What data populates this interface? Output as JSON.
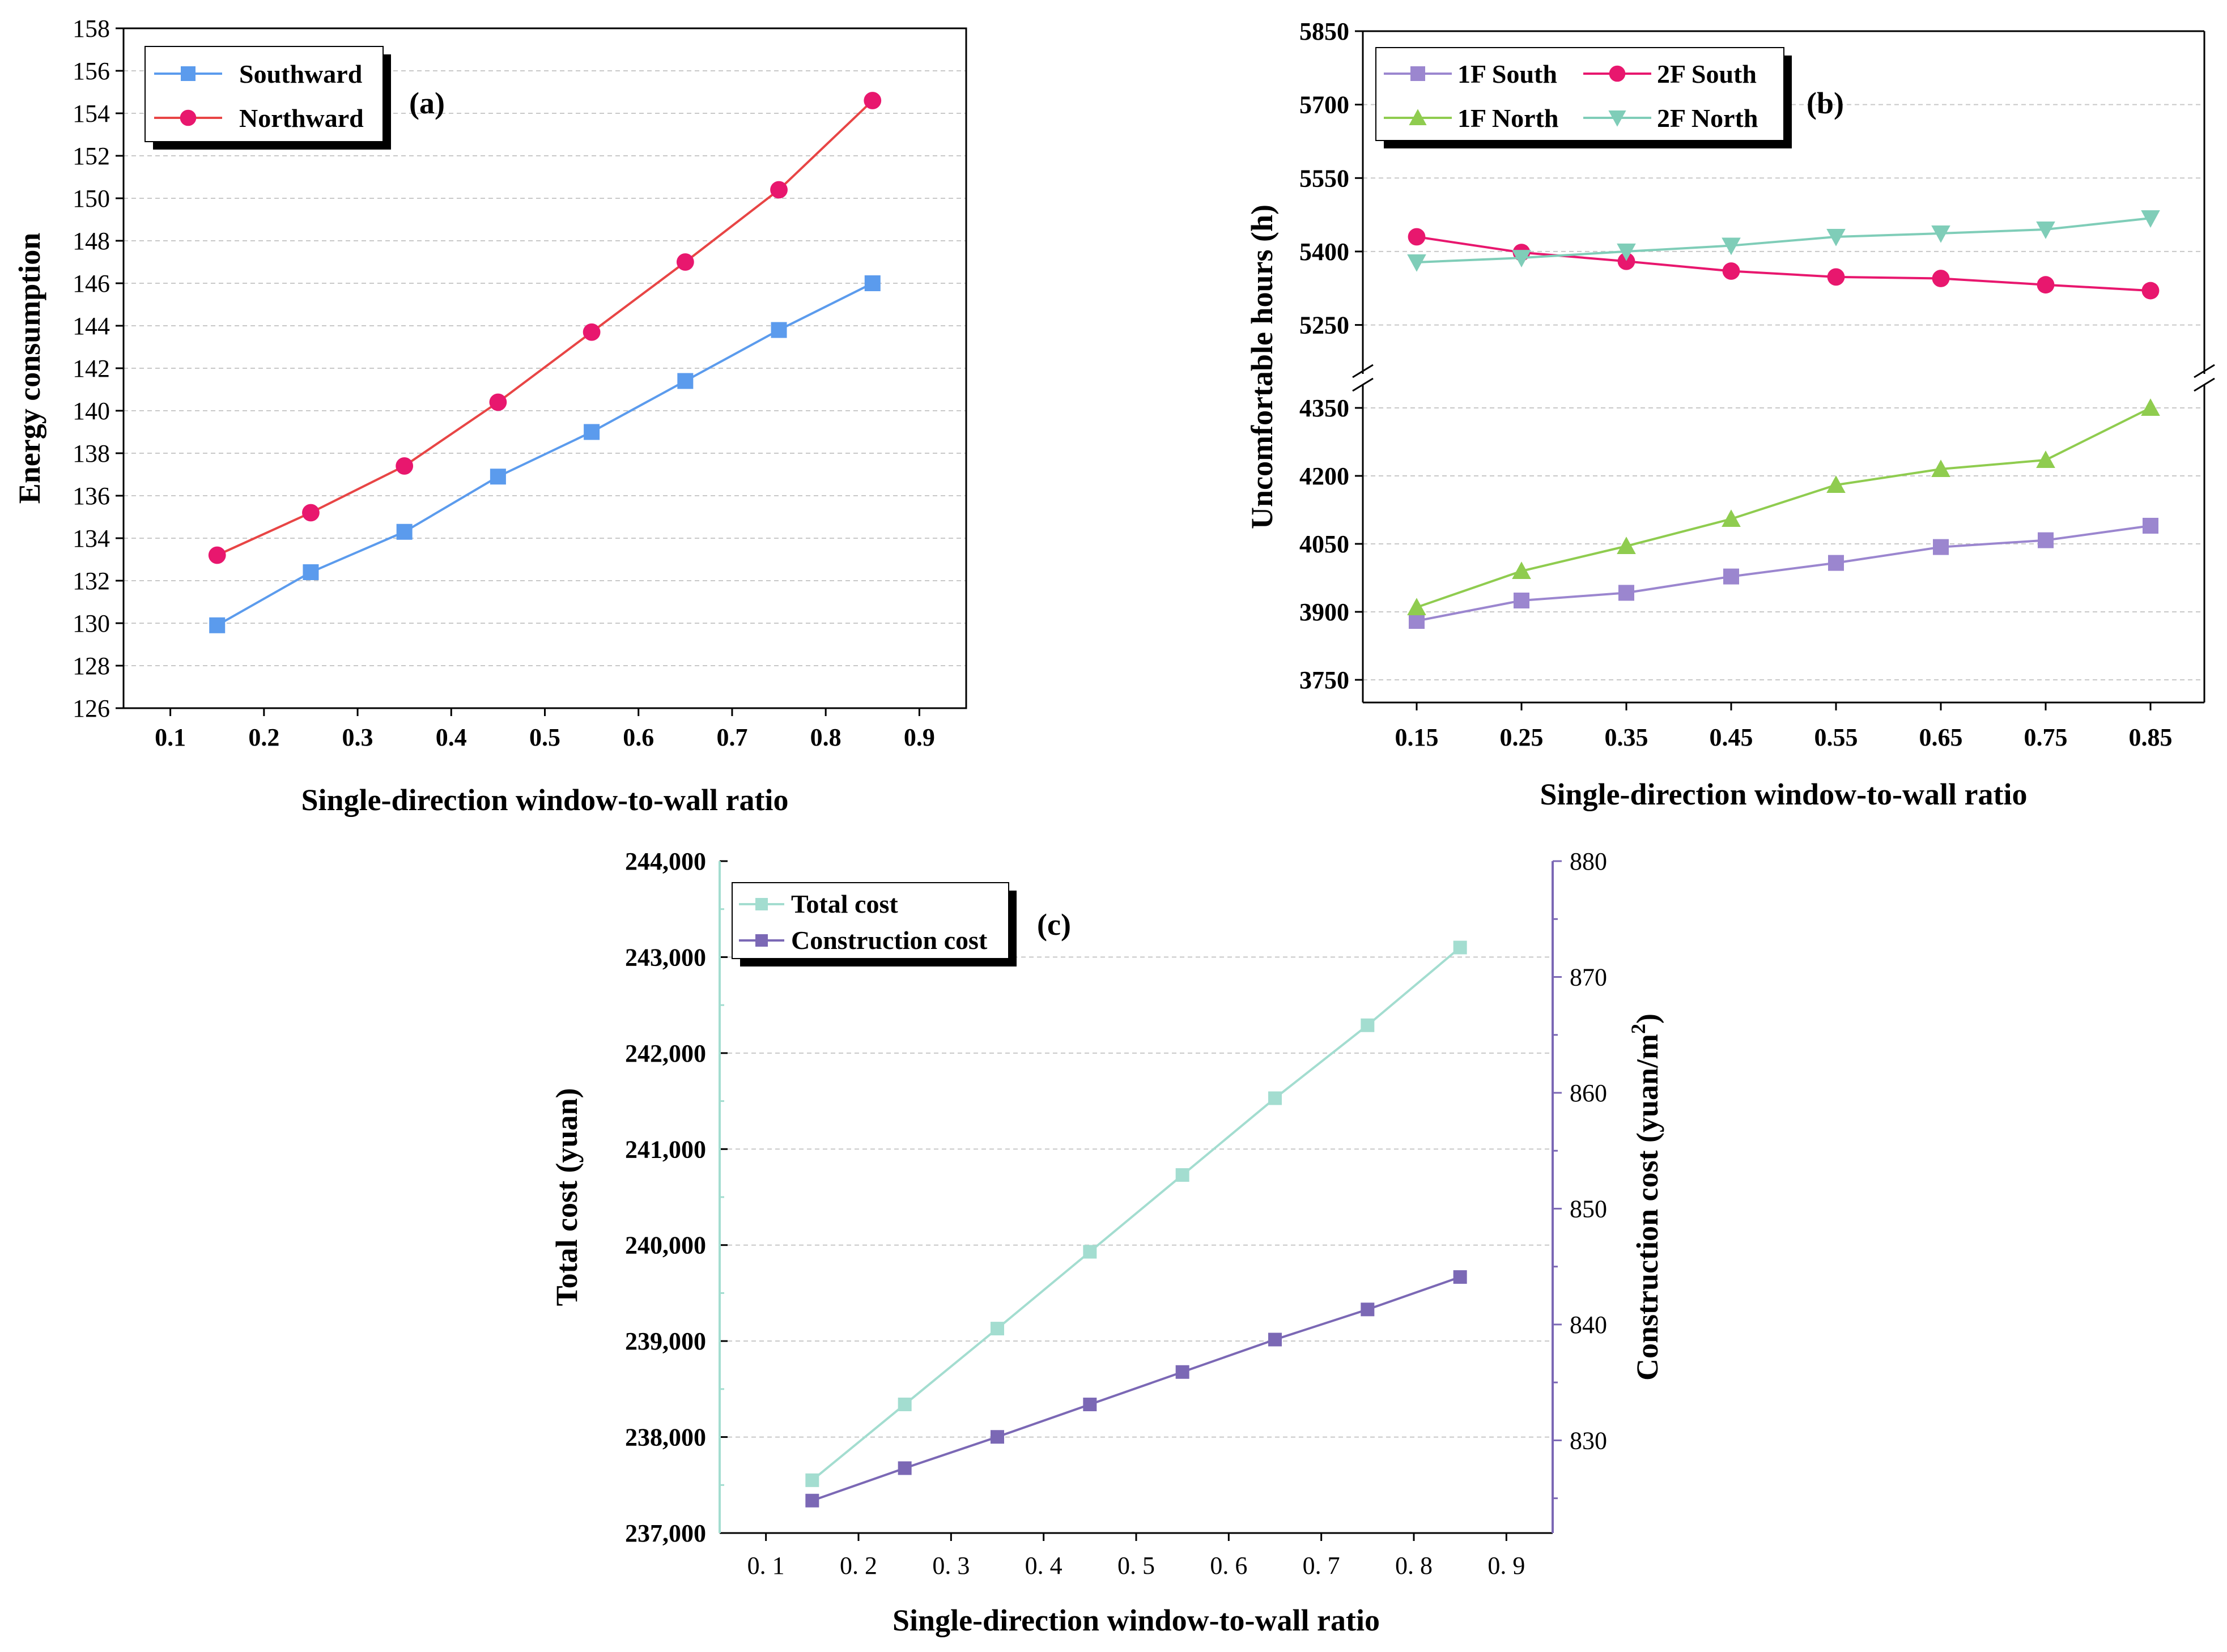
{
  "chart_data": [
    {
      "type": "line",
      "panel_label": "(a)",
      "xlabel": "Single-direction window-to-wall ratio",
      "ylabel": "Energy consumption",
      "xlim": [
        0.05,
        0.95
      ],
      "ylim": [
        126,
        158
      ],
      "x_ticks": [
        "0.1",
        "0.2",
        "0.3",
        "0.4",
        "0.5",
        "0.6",
        "0.7",
        "0.8",
        "0.9"
      ],
      "y_ticks": [
        "126",
        "128",
        "130",
        "132",
        "134",
        "136",
        "138",
        "140",
        "142",
        "144",
        "146",
        "148",
        "150",
        "152",
        "154",
        "156",
        "158"
      ],
      "grid": true,
      "legend_position": "top-left",
      "x": [
        0.15,
        0.25,
        0.35,
        0.45,
        0.55,
        0.65,
        0.75,
        0.85
      ],
      "series": [
        {
          "name": "Southward",
          "color": "#5b9bed",
          "marker": "square",
          "values": [
            129.9,
            132.4,
            134.3,
            136.9,
            139.0,
            141.4,
            143.8,
            146.0
          ]
        },
        {
          "name": "Northward",
          "color": "#e8176e",
          "line_color": "#e84545",
          "marker": "circle",
          "values": [
            133.2,
            135.2,
            137.4,
            140.4,
            143.7,
            147.0,
            150.4,
            154.6
          ]
        }
      ]
    },
    {
      "type": "line",
      "panel_label": "(b)",
      "xlabel": "Single-direction window-to-wall ratio",
      "ylabel": "Uncomfortable hours (h)",
      "x": [
        "0.15",
        "0.25",
        "0.35",
        "0.45",
        "0.55",
        "0.65",
        "0.75",
        "0.85"
      ],
      "y_ticks_upper": [
        "5250",
        "5400",
        "5550",
        "5700",
        "5850"
      ],
      "y_ticks_lower": [
        "3750",
        "3900",
        "4050",
        "4200",
        "4350"
      ],
      "ylim_upper": [
        5150,
        5850
      ],
      "ylim_lower": [
        3700,
        4400
      ],
      "axis_break": true,
      "grid": true,
      "legend_position": "top-left",
      "series": [
        {
          "name": "1F South",
          "color": "#9b86cf",
          "marker": "square",
          "values": [
            3880,
            3925,
            3942,
            3978,
            4008,
            4043,
            4058,
            4090
          ]
        },
        {
          "name": "2F South",
          "color": "#e8176e",
          "marker": "circle",
          "values": [
            5430,
            5398,
            5380,
            5360,
            5348,
            5345,
            5332,
            5320
          ]
        },
        {
          "name": "1F North",
          "color": "#8fcc4f",
          "marker": "triangle-up",
          "values": [
            3910,
            3990,
            4045,
            4105,
            4180,
            4215,
            4235,
            4350
          ]
        },
        {
          "name": "2F North",
          "color": "#7fcdb8",
          "marker": "triangle-down",
          "values": [
            5378,
            5387,
            5400,
            5412,
            5430,
            5437,
            5445,
            5468
          ]
        }
      ]
    },
    {
      "type": "line",
      "panel_label": "(c)",
      "xlabel": "Single-direction window-to-wall ratio",
      "ylabel": "Total cost (yuan)",
      "ylabel_right": "Construction cost (yuan/m²)",
      "ylabel_right_base": "Construction cost (yuan/m",
      "ylabel_right_sup": "2",
      "ylabel_right_close": ")",
      "xlim": [
        0.05,
        0.95
      ],
      "ylim": [
        237000,
        244000
      ],
      "ylim_right": [
        822,
        880
      ],
      "x_ticks": [
        "0. 1",
        "0. 2",
        "0. 3",
        "0. 4",
        "0. 5",
        "0. 6",
        "0. 7",
        "0. 8",
        "0. 9"
      ],
      "y_ticks": [
        "237,000",
        "238,000",
        "239,000",
        "240,000",
        "241,000",
        "242,000",
        "243,000",
        "244,000"
      ],
      "y_ticks_right": [
        "830",
        "840",
        "850",
        "860",
        "870",
        "880"
      ],
      "grid": true,
      "legend_position": "top-left",
      "x": [
        0.15,
        0.25,
        0.35,
        0.45,
        0.55,
        0.65,
        0.75,
        0.85
      ],
      "series": [
        {
          "name": "Total cost",
          "axis": "left",
          "color": "#a3ddd0",
          "marker": "square",
          "values": [
            237550,
            238340,
            239130,
            239930,
            240730,
            241530,
            242290,
            243100
          ]
        },
        {
          "name": "Construction cost",
          "axis": "right",
          "color": "#7b68b5",
          "marker": "square",
          "values": [
            824.8,
            827.6,
            830.3,
            833.1,
            835.9,
            838.7,
            841.3,
            844.1
          ]
        }
      ]
    }
  ]
}
